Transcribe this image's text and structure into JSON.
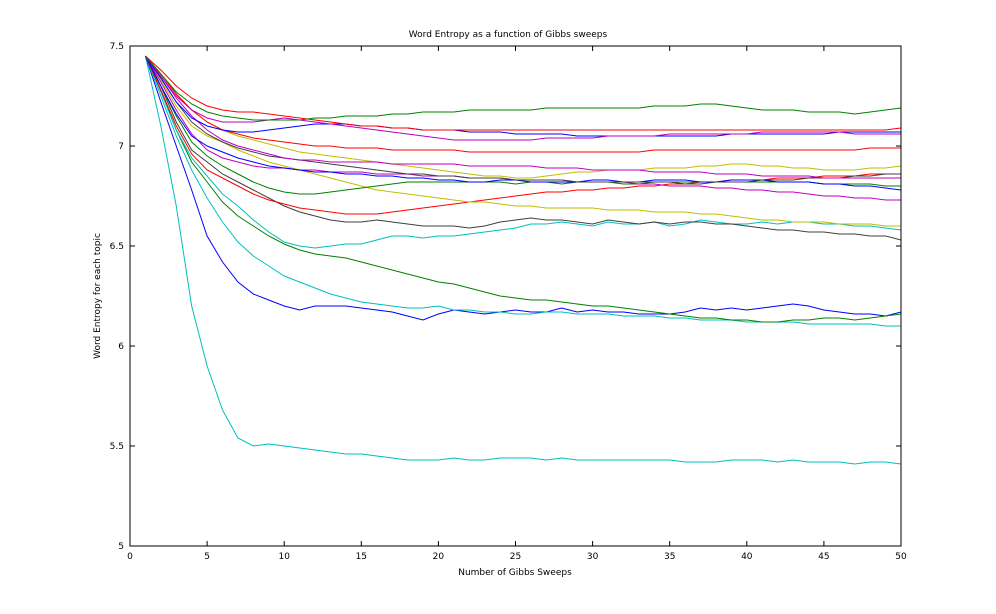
{
  "chart_data": {
    "type": "line",
    "title": "Word Entropy as a function of Gibbs sweeps",
    "xlabel": "Number of Gibbs Sweeps",
    "ylabel": "Word Entropy for each topic",
    "xlim": [
      0,
      50
    ],
    "ylim": [
      5,
      7.5
    ],
    "xticks": [
      0,
      5,
      10,
      15,
      20,
      25,
      30,
      35,
      40,
      45,
      50
    ],
    "yticks": [
      5,
      5.5,
      6,
      6.5,
      7,
      7.5
    ],
    "grid": false,
    "legend": "none",
    "x": [
      1,
      2,
      3,
      4,
      5,
      6,
      7,
      8,
      9,
      10,
      11,
      12,
      13,
      14,
      15,
      16,
      17,
      18,
      19,
      20,
      21,
      22,
      23,
      24,
      25,
      26,
      27,
      28,
      29,
      30,
      31,
      32,
      33,
      34,
      35,
      36,
      37,
      38,
      39,
      40,
      41,
      42,
      43,
      44,
      45,
      46,
      47,
      48,
      49,
      50
    ],
    "series": [
      {
        "color": "#00bfbf",
        "values": [
          7.45,
          7.1,
          6.7,
          6.2,
          5.9,
          5.68,
          5.54,
          5.5,
          5.51,
          5.5,
          5.49,
          5.48,
          5.47,
          5.46,
          5.46,
          5.45,
          5.44,
          5.43,
          5.43,
          5.43,
          5.44,
          5.43,
          5.43,
          5.44,
          5.44,
          5.44,
          5.43,
          5.44,
          5.43,
          5.43,
          5.43,
          5.43,
          5.43,
          5.43,
          5.43,
          5.42,
          5.42,
          5.42,
          5.43,
          5.43,
          5.43,
          5.42,
          5.43,
          5.42,
          5.42,
          5.42,
          5.41,
          5.42,
          5.42,
          5.41
        ]
      },
      {
        "color": "#0000ff",
        "values": [
          7.45,
          7.22,
          7.0,
          6.78,
          6.55,
          6.42,
          6.32,
          6.26,
          6.23,
          6.2,
          6.18,
          6.2,
          6.2,
          6.2,
          6.19,
          6.18,
          6.17,
          6.15,
          6.13,
          6.16,
          6.18,
          6.17,
          6.16,
          6.17,
          6.18,
          6.17,
          6.17,
          6.19,
          6.17,
          6.18,
          6.17,
          6.17,
          6.16,
          6.16,
          6.16,
          6.17,
          6.19,
          6.18,
          6.19,
          6.18,
          6.19,
          6.2,
          6.21,
          6.2,
          6.18,
          6.17,
          6.16,
          6.16,
          6.15,
          6.17
        ]
      },
      {
        "color": "#00bfbf",
        "values": [
          7.45,
          7.25,
          7.05,
          6.88,
          6.74,
          6.62,
          6.52,
          6.45,
          6.4,
          6.35,
          6.32,
          6.29,
          6.26,
          6.24,
          6.22,
          6.21,
          6.2,
          6.19,
          6.19,
          6.2,
          6.18,
          6.18,
          6.17,
          6.17,
          6.16,
          6.16,
          6.17,
          6.17,
          6.16,
          6.16,
          6.16,
          6.15,
          6.15,
          6.15,
          6.14,
          6.14,
          6.13,
          6.13,
          6.13,
          6.12,
          6.12,
          6.12,
          6.12,
          6.11,
          6.11,
          6.11,
          6.11,
          6.11,
          6.1,
          6.1
        ]
      },
      {
        "color": "#008000",
        "values": [
          7.45,
          7.28,
          7.08,
          6.92,
          6.82,
          6.72,
          6.65,
          6.6,
          6.55,
          6.51,
          6.48,
          6.46,
          6.45,
          6.44,
          6.42,
          6.4,
          6.38,
          6.36,
          6.34,
          6.32,
          6.31,
          6.29,
          6.27,
          6.25,
          6.24,
          6.23,
          6.23,
          6.22,
          6.21,
          6.2,
          6.2,
          6.19,
          6.18,
          6.17,
          6.16,
          6.15,
          6.14,
          6.14,
          6.13,
          6.13,
          6.12,
          6.12,
          6.13,
          6.13,
          6.14,
          6.14,
          6.13,
          6.14,
          6.15,
          6.16
        ]
      },
      {
        "color": "#00bfbf",
        "values": [
          7.45,
          7.27,
          7.08,
          6.94,
          6.85,
          6.76,
          6.7,
          6.63,
          6.57,
          6.52,
          6.5,
          6.49,
          6.5,
          6.51,
          6.51,
          6.53,
          6.55,
          6.55,
          6.54,
          6.55,
          6.55,
          6.56,
          6.57,
          6.58,
          6.59,
          6.61,
          6.61,
          6.62,
          6.61,
          6.6,
          6.62,
          6.61,
          6.61,
          6.62,
          6.6,
          6.61,
          6.63,
          6.62,
          6.61,
          6.61,
          6.62,
          6.61,
          6.62,
          6.62,
          6.61,
          6.61,
          6.6,
          6.6,
          6.59,
          6.58
        ]
      },
      {
        "color": "#404040",
        "values": [
          7.45,
          7.3,
          7.12,
          6.98,
          6.92,
          6.86,
          6.82,
          6.78,
          6.74,
          6.7,
          6.67,
          6.65,
          6.63,
          6.62,
          6.62,
          6.63,
          6.62,
          6.61,
          6.6,
          6.6,
          6.6,
          6.59,
          6.6,
          6.62,
          6.63,
          6.64,
          6.63,
          6.63,
          6.62,
          6.61,
          6.63,
          6.62,
          6.61,
          6.62,
          6.61,
          6.62,
          6.62,
          6.61,
          6.61,
          6.6,
          6.59,
          6.58,
          6.58,
          6.57,
          6.57,
          6.56,
          6.56,
          6.55,
          6.55,
          6.53
        ]
      },
      {
        "color": "#ff0000",
        "values": [
          7.45,
          7.28,
          7.1,
          6.96,
          6.88,
          6.84,
          6.8,
          6.76,
          6.73,
          6.71,
          6.69,
          6.68,
          6.67,
          6.66,
          6.66,
          6.66,
          6.67,
          6.68,
          6.69,
          6.7,
          6.71,
          6.72,
          6.73,
          6.74,
          6.75,
          6.76,
          6.77,
          6.77,
          6.78,
          6.78,
          6.79,
          6.79,
          6.8,
          6.8,
          6.81,
          6.81,
          6.82,
          6.82,
          6.83,
          6.83,
          6.83,
          6.84,
          6.84,
          6.84,
          6.85,
          6.85,
          6.85,
          6.86,
          6.86,
          6.86
        ]
      },
      {
        "color": "#bfbf00",
        "values": [
          7.45,
          7.33,
          7.2,
          7.1,
          7.05,
          7.02,
          6.98,
          6.95,
          6.92,
          6.9,
          6.88,
          6.86,
          6.84,
          6.82,
          6.8,
          6.78,
          6.77,
          6.76,
          6.75,
          6.74,
          6.73,
          6.72,
          6.72,
          6.71,
          6.7,
          6.7,
          6.69,
          6.69,
          6.69,
          6.69,
          6.68,
          6.68,
          6.68,
          6.67,
          6.67,
          6.67,
          6.66,
          6.66,
          6.65,
          6.64,
          6.63,
          6.63,
          6.62,
          6.62,
          6.62,
          6.61,
          6.61,
          6.61,
          6.6,
          6.6
        ]
      },
      {
        "color": "#008000",
        "values": [
          7.45,
          7.3,
          7.15,
          7.02,
          6.95,
          6.9,
          6.86,
          6.82,
          6.79,
          6.77,
          6.76,
          6.76,
          6.77,
          6.78,
          6.79,
          6.8,
          6.81,
          6.82,
          6.82,
          6.82,
          6.82,
          6.82,
          6.82,
          6.82,
          6.81,
          6.82,
          6.82,
          6.81,
          6.82,
          6.82,
          6.82,
          6.81,
          6.81,
          6.82,
          6.82,
          6.82,
          6.82,
          6.82,
          6.82,
          6.82,
          6.82,
          6.82,
          6.82,
          6.82,
          6.81,
          6.81,
          6.81,
          6.81,
          6.8,
          6.8
        ]
      },
      {
        "color": "#bf00bf",
        "values": [
          7.45,
          7.32,
          7.18,
          7.06,
          6.98,
          6.94,
          6.92,
          6.9,
          6.89,
          6.89,
          6.88,
          6.88,
          6.87,
          6.87,
          6.87,
          6.86,
          6.86,
          6.86,
          6.85,
          6.85,
          6.85,
          6.84,
          6.84,
          6.84,
          6.83,
          6.83,
          6.83,
          6.83,
          6.82,
          6.82,
          6.82,
          6.82,
          6.81,
          6.81,
          6.8,
          6.8,
          6.8,
          6.79,
          6.79,
          6.78,
          6.78,
          6.77,
          6.77,
          6.76,
          6.75,
          6.75,
          6.74,
          6.74,
          6.73,
          6.73
        ]
      },
      {
        "color": "#0000ff",
        "values": [
          7.45,
          7.3,
          7.16,
          7.05,
          7.0,
          6.97,
          6.94,
          6.92,
          6.9,
          6.89,
          6.88,
          6.87,
          6.87,
          6.86,
          6.86,
          6.85,
          6.85,
          6.84,
          6.84,
          6.83,
          6.83,
          6.82,
          6.82,
          6.83,
          6.83,
          6.82,
          6.82,
          6.82,
          6.82,
          6.83,
          6.83,
          6.82,
          6.82,
          6.83,
          6.83,
          6.83,
          6.82,
          6.82,
          6.83,
          6.83,
          6.83,
          6.82,
          6.82,
          6.82,
          6.81,
          6.81,
          6.8,
          6.8,
          6.79,
          6.78
        ]
      },
      {
        "color": "#404040",
        "values": [
          7.45,
          7.34,
          7.22,
          7.12,
          7.06,
          7.02,
          6.99,
          6.97,
          6.95,
          6.94,
          6.93,
          6.92,
          6.91,
          6.9,
          6.89,
          6.88,
          6.87,
          6.86,
          6.86,
          6.85,
          6.85,
          6.84,
          6.84,
          6.84,
          6.83,
          6.83,
          6.83,
          6.83,
          6.82,
          6.82,
          6.82,
          6.82,
          6.82,
          6.82,
          6.82,
          6.81,
          6.81,
          6.82,
          6.82,
          6.82,
          6.83,
          6.83,
          6.83,
          6.84,
          6.84,
          6.84,
          6.85,
          6.85,
          6.86,
          6.86
        ]
      },
      {
        "color": "#bfbf00",
        "values": [
          7.45,
          7.36,
          7.26,
          7.18,
          7.12,
          7.08,
          7.05,
          7.03,
          7.01,
          6.99,
          6.97,
          6.96,
          6.95,
          6.94,
          6.93,
          6.92,
          6.91,
          6.9,
          6.89,
          6.88,
          6.87,
          6.86,
          6.85,
          6.85,
          6.84,
          6.84,
          6.85,
          6.86,
          6.87,
          6.87,
          6.88,
          6.88,
          6.88,
          6.89,
          6.89,
          6.89,
          6.9,
          6.9,
          6.91,
          6.91,
          6.9,
          6.9,
          6.89,
          6.89,
          6.88,
          6.88,
          6.88,
          6.89,
          6.89,
          6.9
        ]
      },
      {
        "color": "#bf00bf",
        "values": [
          7.45,
          7.35,
          7.24,
          7.15,
          7.08,
          7.03,
          7.0,
          6.98,
          6.96,
          6.94,
          6.93,
          6.93,
          6.92,
          6.92,
          6.92,
          6.92,
          6.91,
          6.91,
          6.91,
          6.91,
          6.91,
          6.9,
          6.9,
          6.9,
          6.9,
          6.9,
          6.89,
          6.89,
          6.89,
          6.88,
          6.88,
          6.88,
          6.88,
          6.87,
          6.87,
          6.87,
          6.87,
          6.86,
          6.86,
          6.86,
          6.85,
          6.85,
          6.85,
          6.85,
          6.84,
          6.84,
          6.84,
          6.84,
          6.84,
          6.84
        ]
      },
      {
        "color": "#ff0000",
        "values": [
          7.45,
          7.36,
          7.26,
          7.18,
          7.12,
          7.08,
          7.06,
          7.04,
          7.03,
          7.02,
          7.01,
          7.0,
          7.0,
          6.99,
          6.99,
          6.99,
          6.98,
          6.98,
          6.98,
          6.98,
          6.98,
          6.97,
          6.97,
          6.97,
          6.97,
          6.97,
          6.97,
          6.97,
          6.97,
          6.97,
          6.97,
          6.97,
          6.97,
          6.98,
          6.98,
          6.98,
          6.98,
          6.98,
          6.98,
          6.98,
          6.98,
          6.98,
          6.98,
          6.98,
          6.98,
          6.98,
          6.98,
          6.99,
          6.99,
          6.99
        ]
      },
      {
        "color": "#0000ff",
        "values": [
          7.45,
          7.34,
          7.22,
          7.14,
          7.1,
          7.08,
          7.07,
          7.07,
          7.08,
          7.09,
          7.1,
          7.11,
          7.11,
          7.11,
          7.1,
          7.1,
          7.09,
          7.09,
          7.08,
          7.08,
          7.08,
          7.07,
          7.07,
          7.07,
          7.06,
          7.06,
          7.06,
          7.06,
          7.05,
          7.05,
          7.05,
          7.05,
          7.05,
          7.05,
          7.05,
          7.05,
          7.05,
          7.05,
          7.06,
          7.06,
          7.06,
          7.06,
          7.06,
          7.06,
          7.06,
          7.07,
          7.07,
          7.07,
          7.07,
          7.07
        ]
      },
      {
        "color": "#ff0000",
        "values": [
          7.45,
          7.38,
          7.3,
          7.24,
          7.2,
          7.18,
          7.17,
          7.17,
          7.16,
          7.15,
          7.14,
          7.13,
          7.12,
          7.11,
          7.1,
          7.1,
          7.09,
          7.09,
          7.08,
          7.08,
          7.08,
          7.08,
          7.08,
          7.08,
          7.08,
          7.08,
          7.08,
          7.08,
          7.08,
          7.08,
          7.08,
          7.08,
          7.08,
          7.08,
          7.08,
          7.08,
          7.08,
          7.08,
          7.08,
          7.08,
          7.08,
          7.08,
          7.08,
          7.08,
          7.08,
          7.08,
          7.08,
          7.08,
          7.08,
          7.09
        ]
      },
      {
        "color": "#bf00bf",
        "values": [
          7.45,
          7.35,
          7.25,
          7.18,
          7.14,
          7.12,
          7.12,
          7.12,
          7.13,
          7.14,
          7.13,
          7.12,
          7.11,
          7.1,
          7.09,
          7.08,
          7.07,
          7.06,
          7.05,
          7.04,
          7.03,
          7.03,
          7.03,
          7.03,
          7.03,
          7.03,
          7.04,
          7.04,
          7.04,
          7.04,
          7.05,
          7.05,
          7.05,
          7.05,
          7.06,
          7.06,
          7.06,
          7.06,
          7.06,
          7.06,
          7.07,
          7.07,
          7.07,
          7.07,
          7.07,
          7.07,
          7.06,
          7.06,
          7.06,
          7.06
        ]
      },
      {
        "color": "#008000",
        "values": [
          7.45,
          7.36,
          7.27,
          7.21,
          7.17,
          7.15,
          7.14,
          7.13,
          7.13,
          7.13,
          7.13,
          7.14,
          7.14,
          7.15,
          7.15,
          7.15,
          7.16,
          7.16,
          7.17,
          7.17,
          7.17,
          7.18,
          7.18,
          7.18,
          7.18,
          7.18,
          7.19,
          7.19,
          7.19,
          7.19,
          7.19,
          7.19,
          7.19,
          7.2,
          7.2,
          7.2,
          7.21,
          7.21,
          7.2,
          7.19,
          7.18,
          7.18,
          7.18,
          7.17,
          7.17,
          7.17,
          7.16,
          7.17,
          7.18,
          7.19
        ]
      }
    ]
  }
}
